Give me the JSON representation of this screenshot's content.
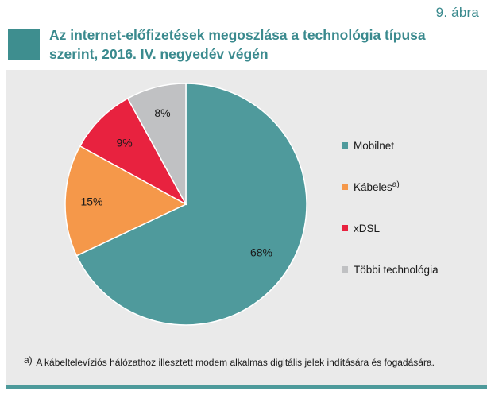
{
  "figure_label": "9. ábra",
  "title": "Az internet-előfizetések megoszlása a technológia típusa szerint, 2016. IV. negyedév végén",
  "chart_data": {
    "type": "pie",
    "title": "Az internet-előfizetések megoszlása a technológia típusa szerint, 2016. IV. negyedév végén",
    "unit": "%",
    "slices": [
      {
        "label": "Mobilnet",
        "sup": "",
        "value": 68,
        "display": "68%",
        "color": "#4f9a9c"
      },
      {
        "label": "Kábeles",
        "sup": "a)",
        "value": 15,
        "display": "15%",
        "color": "#f5984a"
      },
      {
        "label": "xDSL",
        "sup": "",
        "value": 9,
        "display": "9%",
        "color": "#e8223f"
      },
      {
        "label": "Többi technológia",
        "sup": "",
        "value": 8,
        "display": "8%",
        "color": "#c0c1c3"
      }
    ],
    "legend_position": "right"
  },
  "footnote": {
    "marker": "a)",
    "text": "A kábeltelevíziós hálózathoz illesztett modem alkalmas digitális jelek indítására és fogadására."
  }
}
